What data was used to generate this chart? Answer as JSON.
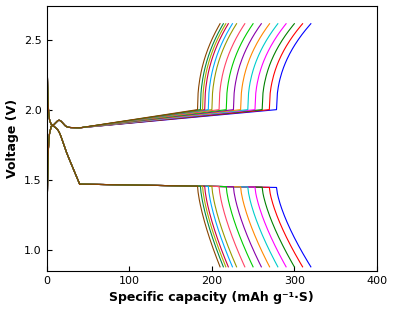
{
  "title": "",
  "xlabel": "Specific capacity (mAh g⁻¹·S)",
  "ylabel": "Voltage (V)",
  "xlim": [
    0,
    400
  ],
  "ylim": [
    0.85,
    2.75
  ],
  "xticks": [
    0,
    100,
    200,
    300,
    400
  ],
  "yticks": [
    1.0,
    1.5,
    2.0,
    2.5
  ],
  "num_cycles": 15,
  "colors": [
    "#0000ff",
    "#ff0000",
    "#008000",
    "#ff00ff",
    "#00cccc",
    "#ff8800",
    "#8800aa",
    "#00cc00",
    "#ff4466",
    "#999900",
    "#00aaff",
    "#cc0044",
    "#aaaa00",
    "#008844",
    "#884400"
  ],
  "max_caps_discharge": [
    320,
    310,
    300,
    290,
    280,
    270,
    260,
    250,
    240,
    230,
    225,
    220,
    217,
    214,
    210
  ],
  "max_caps_charge": [
    320,
    310,
    300,
    290,
    280,
    270,
    260,
    250,
    240,
    230,
    225,
    220,
    217,
    214,
    210
  ],
  "background": "#ffffff"
}
